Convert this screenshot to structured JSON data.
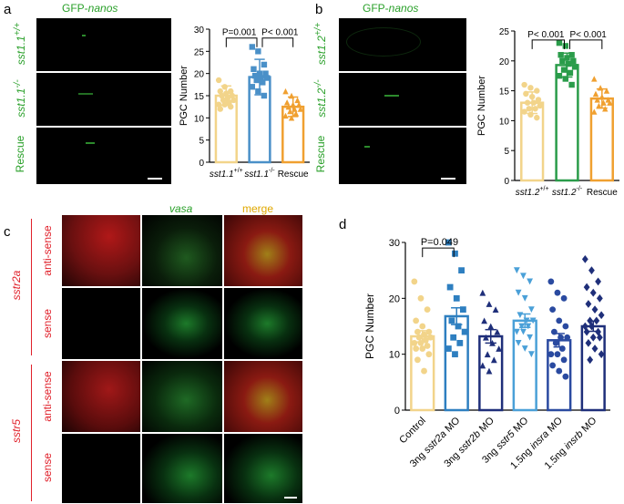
{
  "panels": {
    "a": {
      "letter": "a",
      "title_prefix": "GFP-",
      "title_gene": "nanos",
      "rows": [
        "sst1.1+/+",
        "sst1.1-/-",
        "Rescue"
      ],
      "row_gene": "sst1.1",
      "row_sup": [
        "+/+",
        "-/-",
        ""
      ]
    },
    "b": {
      "letter": "b",
      "title_prefix": "GFP-",
      "title_gene": "nanos",
      "rows": [
        "sst1.2+/+",
        "sst1.2-/-",
        "Rescue"
      ],
      "row_gene": "sst1.2",
      "row_sup": [
        "+/+",
        "-/-",
        ""
      ]
    },
    "c": {
      "letter": "c",
      "col_vasa": "vasa",
      "col_merge": "merge",
      "group1": "sstr2a",
      "group2": "sstr5",
      "anti_sense": "anti-sense",
      "sense": "sense"
    },
    "d": {
      "letter": "d"
    }
  },
  "chart_data": [
    {
      "id": "chart-a",
      "type": "bar",
      "categories": [
        "sst1.1+/+",
        "sst1.1-/-",
        "Rescue"
      ],
      "values": [
        15.0,
        19.2,
        12.5
      ],
      "errors": [
        2.2,
        4.0,
        2.2
      ],
      "colors": [
        "#f2d48a",
        "#4a90c8",
        "#f0a030"
      ],
      "ylabel": "PGC Number",
      "ylim": [
        0,
        30
      ],
      "yticks": [
        0,
        5,
        10,
        15,
        20,
        25,
        30
      ],
      "points": [
        [
          18.5,
          17,
          16,
          16,
          15.5,
          15,
          15,
          14.5,
          14,
          14,
          13.5,
          13,
          13,
          12.5,
          12
        ],
        [
          26,
          25,
          22,
          21,
          20,
          20,
          19.5,
          19,
          19,
          18.5,
          18,
          17,
          16,
          15
        ],
        [
          16,
          15,
          14,
          13.5,
          13,
          13,
          12.5,
          12,
          12,
          11.5,
          11,
          10.5,
          10
        ]
      ],
      "annotations": [
        {
          "from": 0,
          "to": 1,
          "y": 28,
          "label": "P=0.001"
        },
        {
          "from": 1,
          "to": 2,
          "y": 28,
          "label": "P< 0.001"
        }
      ]
    },
    {
      "id": "chart-b",
      "type": "bar",
      "categories": [
        "sst1.2+/+",
        "sst1.2-/-",
        "Rescue"
      ],
      "values": [
        13.0,
        19.3,
        13.7
      ],
      "errors": [
        1.8,
        2.0,
        1.6
      ],
      "colors": [
        "#f2d48a",
        "#2a9c4a",
        "#f0a030"
      ],
      "ylabel": "PGC Number",
      "ylim": [
        0,
        25
      ],
      "yticks": [
        0,
        5,
        10,
        15,
        20,
        25
      ],
      "points": [
        [
          16,
          15.5,
          15,
          14.5,
          14,
          13.5,
          13,
          13,
          12.5,
          12,
          12,
          11.5,
          11,
          10.5
        ],
        [
          23,
          22.5,
          21,
          21,
          20.5,
          20,
          20,
          19.5,
          19,
          18.5,
          18,
          17.5,
          17,
          16
        ],
        [
          17,
          15.5,
          15,
          14.5,
          14,
          13.5,
          13.5,
          13,
          13,
          12.5,
          12,
          11.5
        ]
      ],
      "annotations": [
        {
          "from": 0,
          "to": 1,
          "y": 23.5,
          "label": "P< 0.001"
        },
        {
          "from": 1,
          "to": 2,
          "y": 23.5,
          "label": "P< 0.001"
        }
      ]
    },
    {
      "id": "chart-d",
      "type": "bar",
      "categories": [
        "Control",
        "3ng sstr2a MO",
        "3ng sstr2b MO",
        "3ng sstr5 MO",
        "1.5ng insra MO",
        "1.5ng insrb MO"
      ],
      "cat_prefix": [
        "",
        "3ng ",
        "3ng ",
        "3ng ",
        "1.5ng ",
        "1.5ng "
      ],
      "cat_gene": [
        "Control",
        "sstr2a",
        "sstr2b",
        "sstr5",
        "insra",
        "insrb"
      ],
      "cat_suffix": [
        "",
        " MO",
        " MO",
        " MO",
        " MO",
        " MO"
      ],
      "values": [
        13.2,
        16.8,
        13.2,
        16.0,
        12.5,
        15.0
      ],
      "errors": [
        1.0,
        1.5,
        1.2,
        1.2,
        1.2,
        0.9
      ],
      "colors": [
        "#f2d48a",
        "#2e7fc0",
        "#1f2f7a",
        "#4aa0d8",
        "#2a4aa0",
        "#1f2f7a"
      ],
      "ylabel": "PGC Number",
      "ylim": [
        0,
        30
      ],
      "yticks": [
        0,
        10,
        20,
        30
      ],
      "points": [
        [
          23,
          20,
          18,
          16,
          15,
          14,
          14,
          13.5,
          13,
          13,
          12.5,
          12,
          12,
          11.5,
          11,
          11,
          10,
          9,
          7
        ],
        [
          30,
          28,
          25,
          22,
          20,
          18,
          16,
          15,
          14,
          13,
          12,
          11,
          10
        ],
        [
          21,
          19,
          18,
          16,
          15,
          14,
          13,
          12,
          11,
          10,
          9,
          8,
          7
        ],
        [
          25,
          24,
          23,
          21,
          20,
          18,
          17,
          16,
          16,
          15,
          15,
          14,
          14,
          13,
          12,
          11,
          10
        ],
        [
          23,
          21,
          20,
          18,
          16,
          15,
          14,
          13,
          13,
          12,
          11,
          10,
          10,
          9,
          8,
          7,
          6
        ],
        [
          27,
          25,
          23,
          22,
          21,
          20,
          19,
          18,
          17,
          16,
          16,
          15,
          15,
          14,
          14,
          13,
          13,
          12,
          11,
          10,
          9
        ]
      ],
      "marker": [
        "circle",
        "square",
        "triangle-up",
        "triangle-down",
        "circle",
        "diamond"
      ],
      "annotations": [
        {
          "from": 0,
          "to": 1,
          "y": 29,
          "label": "P=0.049"
        }
      ]
    }
  ]
}
